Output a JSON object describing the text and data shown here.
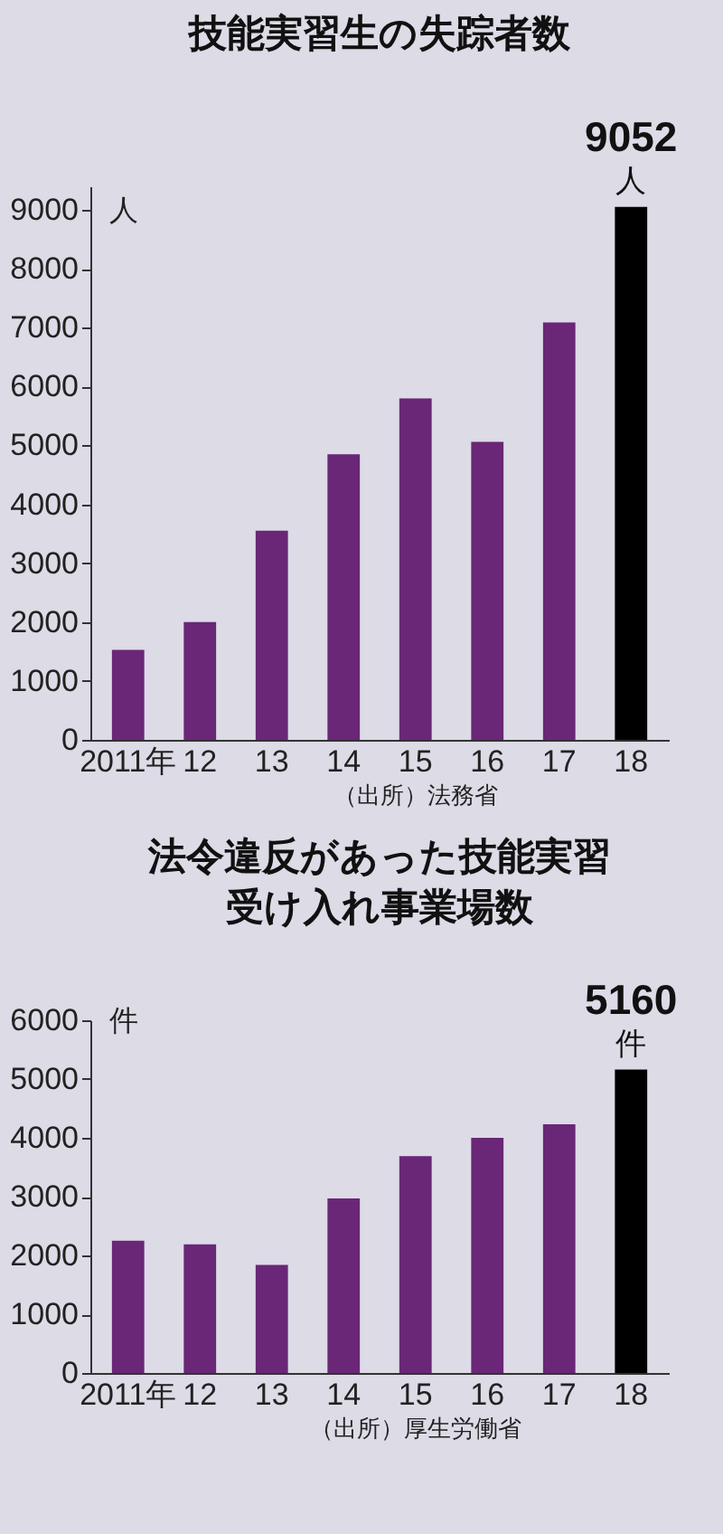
{
  "chart_data": [
    {
      "type": "bar",
      "title": "技能実習生の失踪者数",
      "ylabel": "人",
      "categories": [
        "2011年",
        "12",
        "13",
        "14",
        "15",
        "16",
        "17",
        "18"
      ],
      "values": [
        1530,
        2000,
        3550,
        4850,
        5800,
        5060,
        7090,
        9052
      ],
      "colors": [
        "#6a2677",
        "#6a2677",
        "#6a2677",
        "#6a2677",
        "#6a2677",
        "#6a2677",
        "#6a2677",
        "#000000"
      ],
      "value_labels": [
        null,
        null,
        null,
        null,
        null,
        null,
        null,
        "9052"
      ],
      "ylim": [
        0,
        9400
      ],
      "yticks": [
        0,
        1000,
        2000,
        3000,
        4000,
        5000,
        6000,
        7000,
        8000,
        9000
      ],
      "grid": false,
      "annotations": [
        {
          "text": "人",
          "x": "18",
          "y": 9052
        },
        "（出所）法務省"
      ]
    },
    {
      "type": "bar",
      "title": "法令違反があった技能実習受け入れ事業場数",
      "ylabel": "件",
      "categories": [
        "2011年",
        "12",
        "13",
        "14",
        "15",
        "16",
        "17",
        "18"
      ],
      "values": [
        2250,
        2190,
        1840,
        2970,
        3690,
        4000,
        4230,
        5160
      ],
      "colors": [
        "#6a2677",
        "#6a2677",
        "#6a2677",
        "#6a2677",
        "#6a2677",
        "#6a2677",
        "#6a2677",
        "#000000"
      ],
      "value_labels": [
        null,
        null,
        null,
        null,
        null,
        null,
        null,
        "5160"
      ],
      "ylim": [
        0,
        6000
      ],
      "yticks": [
        0,
        1000,
        2000,
        3000,
        4000,
        5000,
        6000
      ],
      "grid": false,
      "annotations": [
        {
          "text": "件",
          "x": "18",
          "y": 5160
        },
        "（出所）厚生労働省"
      ]
    }
  ]
}
